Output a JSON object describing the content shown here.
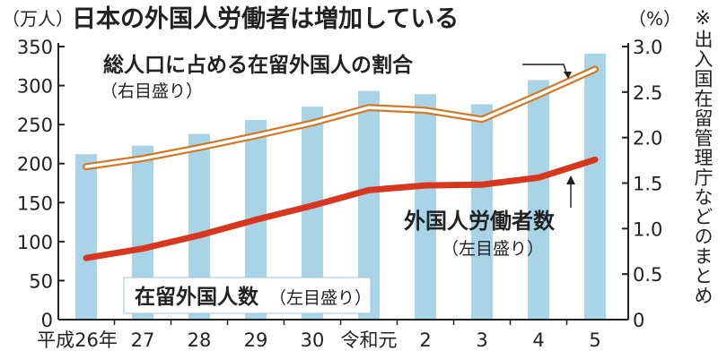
{
  "chart_data": {
    "type": "bar",
    "title": "日本の外国人労働者は増加している",
    "left_unit": "（万人）",
    "right_unit": "（%）",
    "source_note": "※出入国在留管理庁などのまとめ",
    "categories": [
      "平成26年",
      "27",
      "28",
      "29",
      "30",
      "令和元",
      "2",
      "3",
      "4",
      "5"
    ],
    "left_ylim": [
      0,
      350
    ],
    "left_ticks": [
      "0",
      "50",
      "100",
      "150",
      "200",
      "250",
      "300",
      "350"
    ],
    "right_ylim": [
      0,
      3.0
    ],
    "right_ticks": [
      "0",
      "0.5",
      "1.0",
      "1.5",
      "2.0",
      "2.5",
      "3.0"
    ],
    "grid": false,
    "series": [
      {
        "name": "在留外国人数",
        "axis_note": "（左目盛り）",
        "kind": "bar",
        "axis": "left",
        "color": "#a9d3e6",
        "values": [
          212,
          223,
          238,
          256,
          273,
          293,
          289,
          276,
          307,
          341
        ]
      },
      {
        "name": "外国人労働者数",
        "axis_note": "（左目盛り）",
        "kind": "line",
        "axis": "left",
        "color": "#d7371e",
        "values": [
          79,
          91,
          108,
          128,
          146,
          166,
          172,
          173,
          182,
          205
        ]
      },
      {
        "name": "総人口に占める在留外国人の割合",
        "axis_note": "（右目盛り）",
        "kind": "line",
        "axis": "right",
        "color": "#d27a26",
        "values": [
          1.68,
          1.77,
          1.89,
          2.02,
          2.16,
          2.33,
          2.3,
          2.2,
          2.47,
          2.75
        ]
      }
    ]
  }
}
